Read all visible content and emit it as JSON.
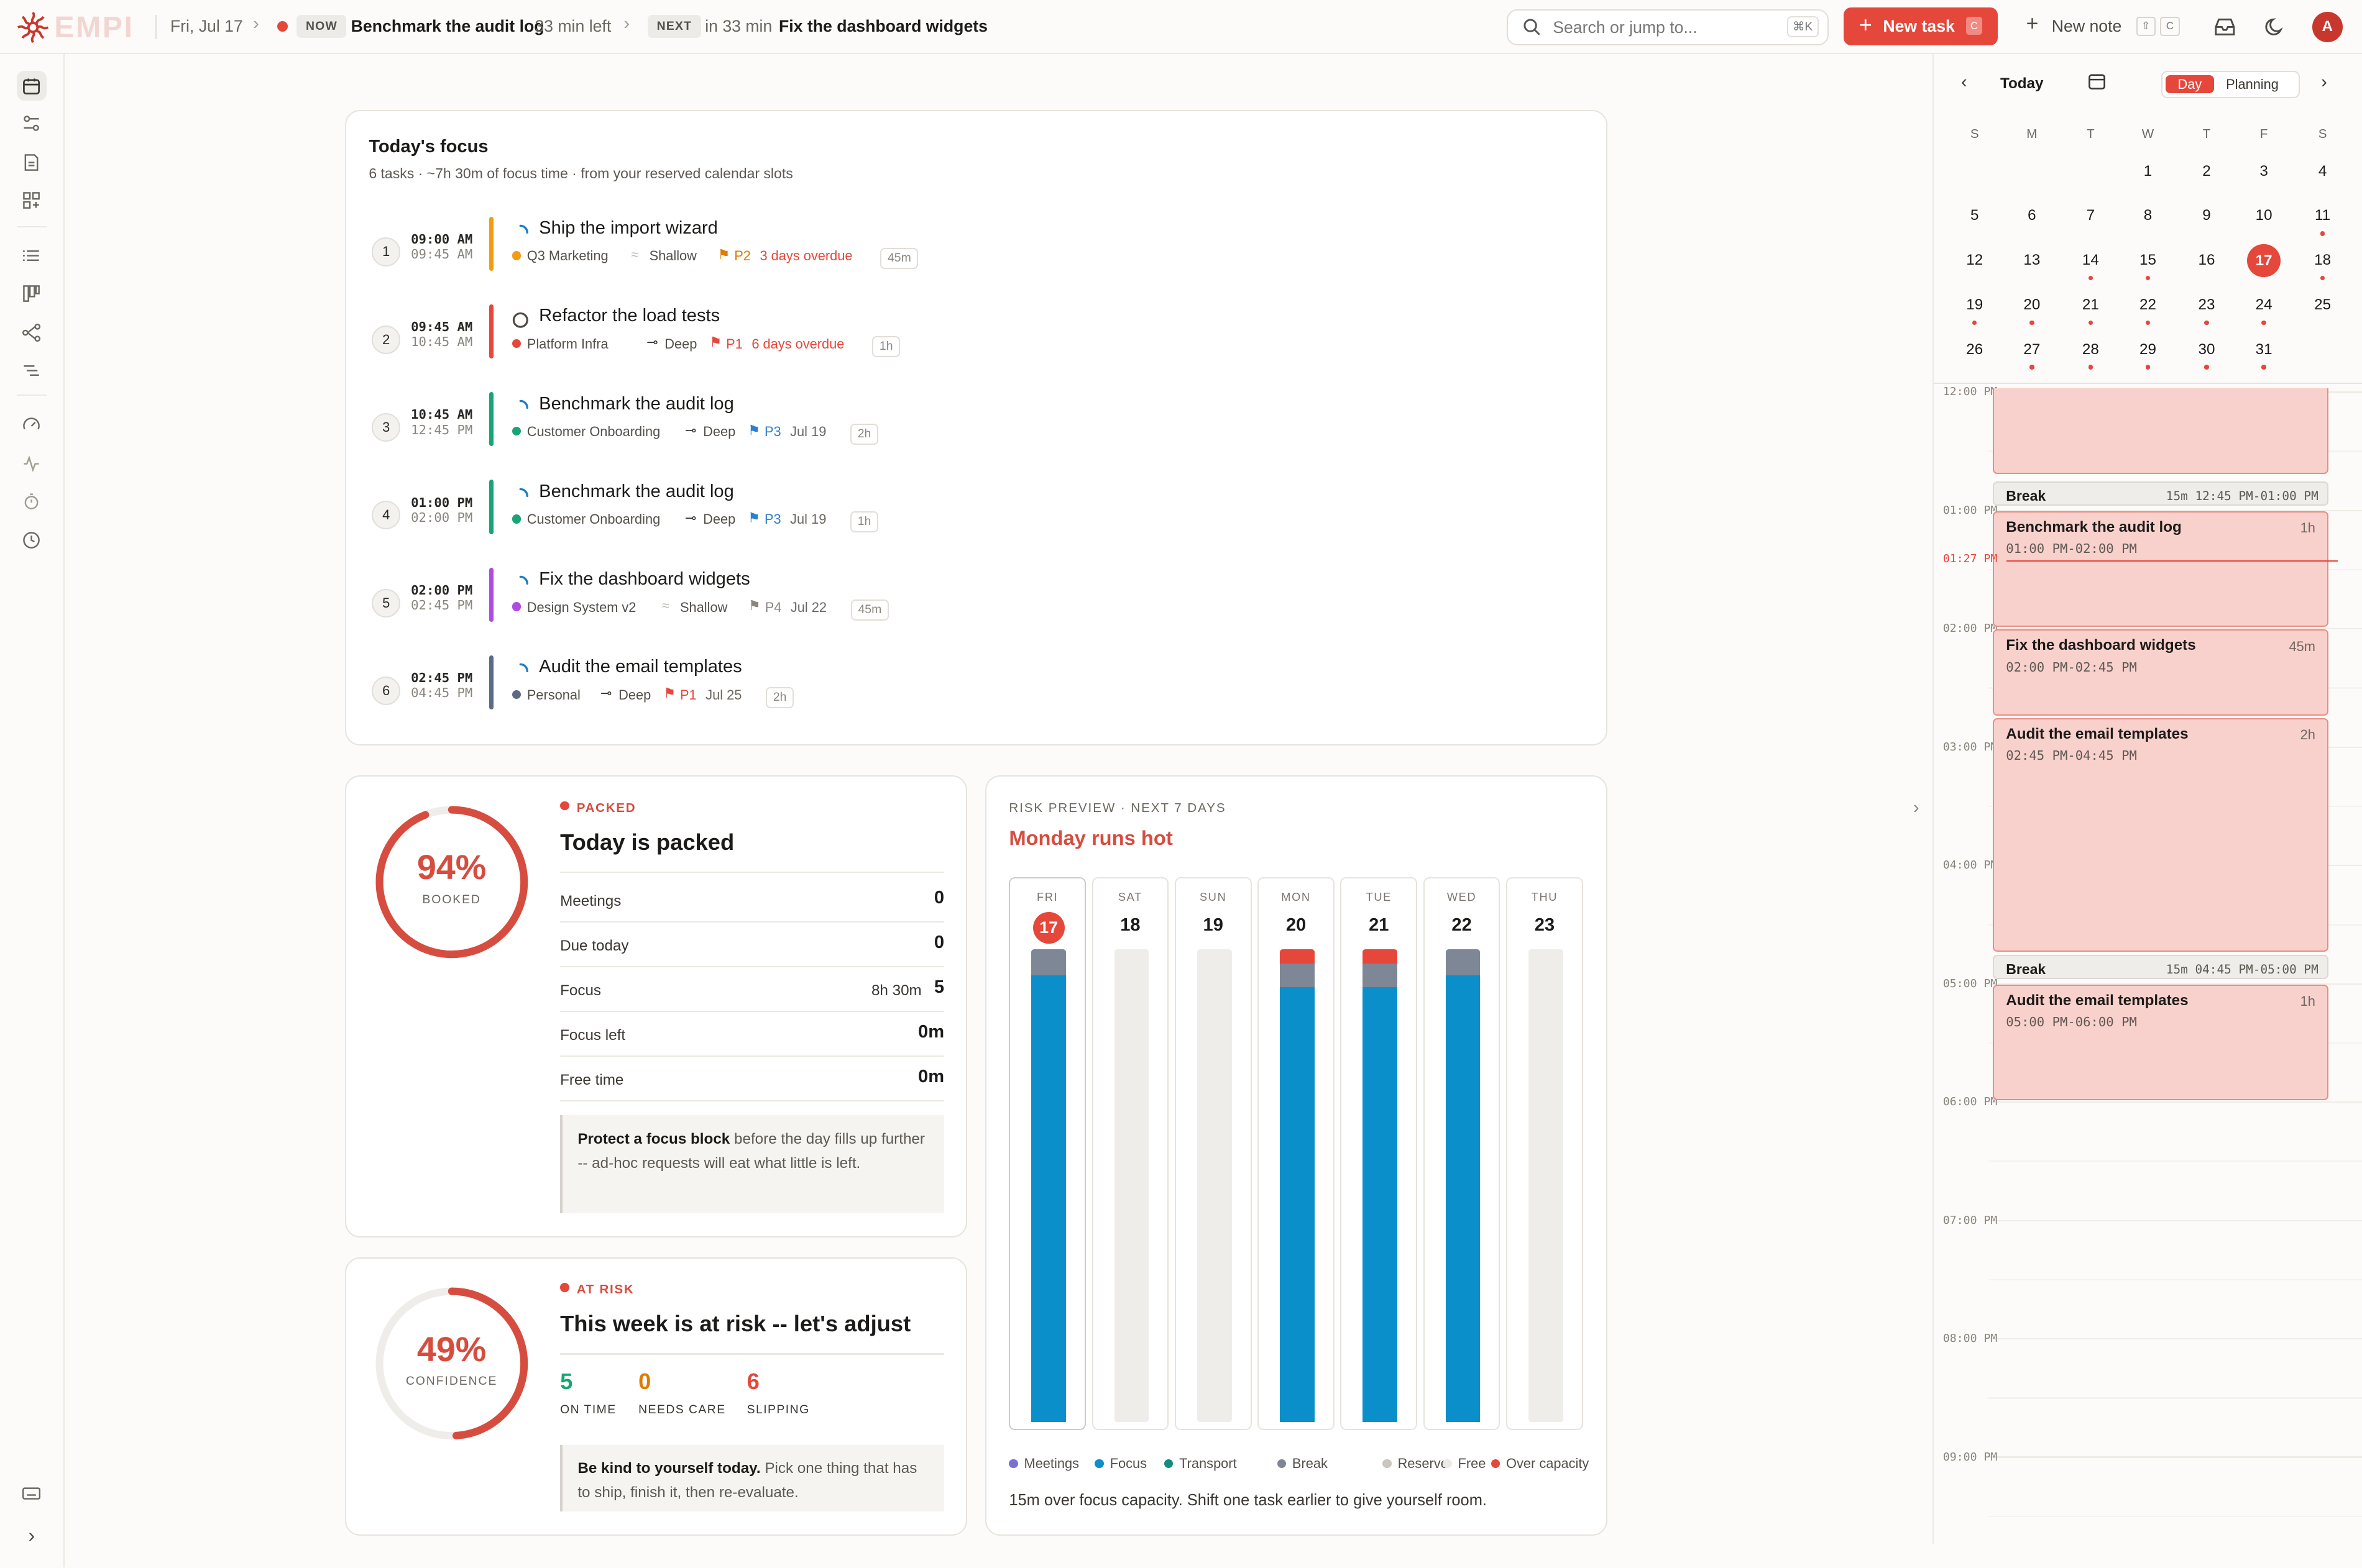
{
  "topbar": {
    "logo_text": "EMPI",
    "date": "Fri, Jul 17",
    "now_label": "NOW",
    "now_task": "Benchmark the audit log",
    "now_remaining": "33 min left",
    "next_label": "NEXT",
    "next_in": "in 33 min",
    "next_task": "Fix the dashboard widgets",
    "search_placeholder": "Search or jump to...",
    "search_shortcut": "⌘K",
    "new_task_label": "New task",
    "new_task_shortcut": "C",
    "new_note_label": "New note",
    "new_note_shortcut_1": "⇧",
    "new_note_shortcut_2": "C",
    "avatar_initial": "A",
    "accent_color": "#e5473b"
  },
  "sidebar": {
    "icons": [
      "calendar-icon",
      "filters-icon",
      "document-icon",
      "apps-icon",
      "list-icon",
      "board-icon",
      "workflow-icon",
      "subtasks-icon",
      "gauge-icon",
      "activity-icon",
      "timer-icon",
      "clock-icon"
    ],
    "bottom_icons": [
      "keyboard-icon",
      "expand-icon"
    ]
  },
  "focus": {
    "title": "Today's focus",
    "subtitle": "6 tasks · ~7h 30m of focus time · from your reserved calendar slots",
    "tasks": [
      {
        "num": "1",
        "start": "09:00 AM",
        "end": "09:45 AM",
        "name": "Ship the import wizard",
        "project": "Q3 Marketing",
        "depth": "Shallow",
        "priority": "P2",
        "due": "3 days overdue",
        "duration": "45m",
        "color": "#f39c12",
        "prio_color": "#e07b00",
        "due_color": "#e5473b"
      },
      {
        "num": "2",
        "start": "09:45 AM",
        "end": "10:45 AM",
        "name": "Refactor the load tests",
        "project": "Platform Infra",
        "depth": "Deep",
        "priority": "P1",
        "due": "6 days overdue",
        "duration": "1h",
        "color": "#e5473b",
        "prio_color": "#e5473b",
        "due_color": "#e5473b"
      },
      {
        "num": "3",
        "start": "10:45 AM",
        "end": "12:45 PM",
        "name": "Benchmark the audit log",
        "project": "Customer Onboarding",
        "depth": "Deep",
        "priority": "P3",
        "due": "Jul 19",
        "duration": "2h",
        "color": "#17a673",
        "prio_color": "#2d7fd1",
        "due_color": "#6b6761"
      },
      {
        "num": "4",
        "start": "01:00 PM",
        "end": "02:00 PM",
        "name": "Benchmark the audit log",
        "project": "Customer Onboarding",
        "depth": "Deep",
        "priority": "P3",
        "due": "Jul 19",
        "duration": "1h",
        "color": "#17a673",
        "prio_color": "#2d7fd1",
        "due_color": "#6b6761"
      },
      {
        "num": "5",
        "start": "02:00 PM",
        "end": "02:45 PM",
        "name": "Fix the dashboard widgets",
        "project": "Design System v2",
        "depth": "Shallow",
        "priority": "P4",
        "due": "Jul 22",
        "duration": "45m",
        "color": "#b04be0",
        "prio_color": "#8a857d",
        "due_color": "#6b6761"
      },
      {
        "num": "6",
        "start": "02:45 PM",
        "end": "04:45 PM",
        "name": "Audit the email templates",
        "project": "Personal",
        "depth": "Deep",
        "priority": "P1",
        "due": "Jul 25",
        "duration": "2h",
        "color": "#5d6b82",
        "prio_color": "#e5473b",
        "due_color": "#6b6761"
      }
    ]
  },
  "packed": {
    "percent": "94%",
    "percent_value": 0.94,
    "ring_label": "BOOKED",
    "badge": "PACKED",
    "heading": "Today is packed",
    "rows": [
      {
        "label": "Meetings",
        "extra": "",
        "value": "0"
      },
      {
        "label": "Due today",
        "extra": "",
        "value": "0"
      },
      {
        "label": "Focus",
        "extra": "8h 30m",
        "value": "5"
      },
      {
        "label": "Focus left",
        "extra": "",
        "value": "0m"
      },
      {
        "label": "Free time",
        "extra": "",
        "value": "0m"
      }
    ],
    "tip_bold": "Protect a focus block",
    "tip_text": " before the day fills up further -- ad-hoc requests will eat what little is left."
  },
  "risk": {
    "percent": "49%",
    "percent_value": 0.49,
    "ring_label": "CONFIDENCE",
    "badge": "AT RISK",
    "heading": "This week is at risk -- let's adjust",
    "stats": [
      {
        "value": "5",
        "label": "ON TIME",
        "color": "#17a673"
      },
      {
        "value": "0",
        "label": "NEEDS CARE",
        "color": "#e07b00"
      },
      {
        "value": "6",
        "label": "SLIPPING",
        "color": "#e5473b"
      }
    ],
    "tip_bold": "Be kind to yourself today.",
    "tip_text": " Pick one thing that has to ship, finish it, then re-evaluate."
  },
  "preview": {
    "kicker": "RISK PREVIEW · NEXT 7 DAYS",
    "title": "Monday runs hot",
    "days": [
      {
        "dow": "FRI",
        "num": "17",
        "today": true,
        "over": 0,
        "brk": 0.055,
        "focus": 0.945
      },
      {
        "dow": "SAT",
        "num": "18",
        "today": false,
        "over": 0,
        "brk": 0,
        "focus": 0
      },
      {
        "dow": "SUN",
        "num": "19",
        "today": false,
        "over": 0,
        "brk": 0,
        "focus": 0
      },
      {
        "dow": "MON",
        "num": "20",
        "today": false,
        "over": 0.03,
        "brk": 0.05,
        "focus": 0.92
      },
      {
        "dow": "TUE",
        "num": "21",
        "today": false,
        "over": 0.03,
        "brk": 0.05,
        "focus": 0.92
      },
      {
        "dow": "WED",
        "num": "22",
        "today": false,
        "over": 0,
        "brk": 0.055,
        "focus": 0.945
      },
      {
        "dow": "THU",
        "num": "23",
        "today": false,
        "over": 0,
        "brk": 0,
        "focus": 0
      }
    ],
    "legend": [
      {
        "label": "Meetings",
        "color": "#7b6fd6"
      },
      {
        "label": "Focus",
        "color": "#0b8fca"
      },
      {
        "label": "Transport",
        "color": "#128c7e"
      },
      {
        "label": "Break",
        "color": "#7d8796"
      },
      {
        "label": "Reserve",
        "color": "#c9c5bf"
      },
      {
        "label": "Free",
        "color": "#eceae6"
      },
      {
        "label": "Over capacity",
        "color": "#e5473b"
      }
    ],
    "footer": "15m over focus capacity. Shift one task earlier to give yourself room."
  },
  "calendar": {
    "today_label": "Today",
    "view_day": "Day",
    "view_planning": "Planning",
    "weekdays": [
      "S",
      "M",
      "T",
      "W",
      "T",
      "F",
      "S"
    ],
    "weeks": [
      [
        "",
        "",
        "",
        "1",
        "2",
        "3",
        "4"
      ],
      [
        "5",
        "6",
        "7",
        "8",
        "9",
        "10",
        "11"
      ],
      [
        "12",
        "13",
        "14",
        "15",
        "16",
        "17",
        "18"
      ],
      [
        "19",
        "20",
        "21",
        "22",
        "23",
        "24",
        "25"
      ],
      [
        "26",
        "27",
        "28",
        "29",
        "30",
        "31",
        ""
      ]
    ],
    "today": "17",
    "dotted": [
      "11",
      "14",
      "15",
      "17",
      "18",
      "19",
      "20",
      "21",
      "22",
      "23",
      "24",
      "27",
      "28",
      "29",
      "30",
      "31"
    ]
  },
  "timeline": {
    "hours": [
      "12:00 PM",
      "01:00 PM",
      "02:00 PM",
      "03:00 PM",
      "04:00 PM",
      "05:00 PM",
      "06:00 PM",
      "07:00 PM",
      "08:00 PM",
      "09:00 PM"
    ],
    "now_label": "01:27 PM",
    "events": [
      {
        "title": "",
        "duration": "",
        "range": "",
        "start": 0,
        "end": 0.7
      },
      {
        "title": "Benchmark the audit log",
        "duration": "1h",
        "range": "01:00 PM-02:00 PM",
        "start": 1,
        "end": 2
      },
      {
        "title": "Fix the dashboard widgets",
        "duration": "45m",
        "range": "02:00 PM-02:45 PM",
        "start": 2,
        "end": 2.75
      },
      {
        "title": "Audit the email templates",
        "duration": "2h",
        "range": "02:45 PM-04:45 PM",
        "start": 2.75,
        "end": 4.75
      },
      {
        "title": "Audit the email templates",
        "duration": "1h",
        "range": "05:00 PM-06:00 PM",
        "start": 5,
        "end": 6
      }
    ],
    "breaks": [
      {
        "title": "Break",
        "detail": "15m 12:45 PM-01:00 PM",
        "start": 0.75
      },
      {
        "title": "Break",
        "detail": "15m 04:45 PM-05:00 PM",
        "start": 4.75
      }
    ]
  }
}
